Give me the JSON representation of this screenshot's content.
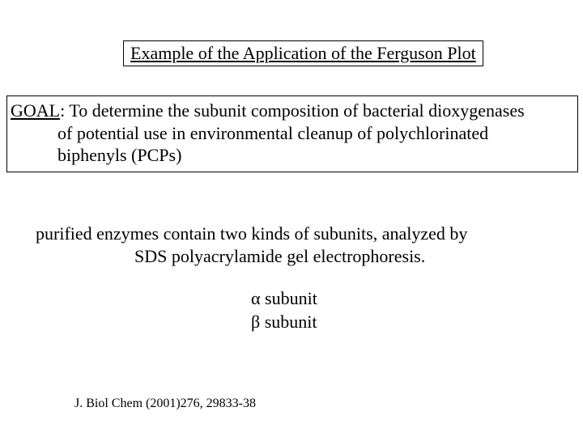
{
  "title": "Example of the Application of the Ferguson Plot",
  "goal": {
    "label": "GOAL",
    "line1": ": To determine the subunit composition of bacterial dioxygenases",
    "line2": "of potential use in environmental cleanup of polychlorinated",
    "line3": "biphenyls (PCPs)"
  },
  "body": {
    "line1": "purified enzymes contain two kinds of subunits, analyzed by",
    "line2": "SDS polyacrylamide gel electrophoresis."
  },
  "subunits": {
    "alpha_symbol": "α",
    "alpha_label": " subunit",
    "beta_symbol": "β",
    "beta_label": " subunit"
  },
  "citation": "J. Biol Chem (2001)276, 29833-38",
  "colors": {
    "background": "#ffffff",
    "text": "#000000",
    "border": "#000000"
  },
  "typography": {
    "font_family": "Times New Roman",
    "title_fontsize": 22,
    "body_fontsize": 22,
    "citation_fontsize": 16
  }
}
